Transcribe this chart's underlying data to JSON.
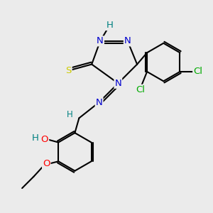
{
  "bg_color": "#ebebeb",
  "atom_colors": {
    "C": "#000000",
    "N": "#0000cd",
    "S": "#cccc00",
    "O": "#ff0000",
    "H": "#008080",
    "Cl": "#00aa00"
  },
  "bond_color": "#000000",
  "lw": 1.5,
  "fontsize": 9.5
}
